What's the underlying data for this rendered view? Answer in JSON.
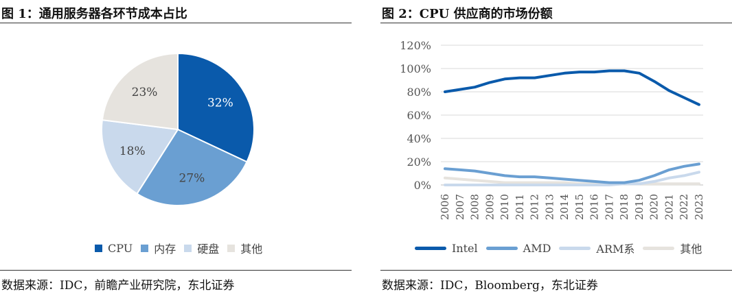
{
  "left": {
    "title": "图 1：通用服务器各环节成本占比",
    "source": "数据来源：IDC，前瞻产业研究院，东北证券",
    "chart_data": {
      "type": "pie",
      "categories": [
        "CPU",
        "内存",
        "硬盘",
        "其他"
      ],
      "values": [
        32,
        27,
        18,
        23
      ],
      "labels": [
        "32%",
        "27%",
        "18%",
        "23%"
      ],
      "colors": [
        "#0a5aab",
        "#6a9fd2",
        "#c9d9ec",
        "#e6e3de"
      ],
      "legend": "bottom"
    }
  },
  "right": {
    "title": "图 2：CPU 供应商的市场份额",
    "source": "数据来源：IDC，Bloomberg，东北证券",
    "chart_data": {
      "type": "line",
      "x": [
        "2006",
        "2007",
        "2008",
        "2009",
        "2010",
        "2011",
        "2012",
        "2013",
        "2014",
        "2015",
        "2016",
        "2017",
        "2018",
        "2019",
        "2020",
        "2021",
        "2022",
        "2023"
      ],
      "ylim": [
        0,
        120
      ],
      "yticks": [
        "0%",
        "20%",
        "40%",
        "60%",
        "80%",
        "100%",
        "120%"
      ],
      "series": [
        {
          "name": "Intel",
          "color": "#0a5aab",
          "values": [
            80,
            82,
            84,
            88,
            91,
            92,
            92,
            94,
            96,
            97,
            97,
            98,
            98,
            96,
            89,
            81,
            75,
            69
          ]
        },
        {
          "name": "AMD",
          "color": "#6a9fd2",
          "values": [
            14,
            13,
            12,
            10,
            8,
            7,
            7,
            6,
            5,
            4,
            3,
            2,
            2,
            4,
            8,
            13,
            16,
            18
          ]
        },
        {
          "name": "ARM系",
          "color": "#c9d9ec",
          "values": [
            0,
            0,
            0,
            0,
            0,
            0,
            0,
            0,
            0,
            0,
            0,
            0,
            1,
            1,
            3,
            6,
            8,
            11
          ]
        },
        {
          "name": "其他",
          "color": "#e6e3de",
          "values": [
            6,
            5,
            4,
            3,
            2,
            2,
            2,
            2,
            2,
            1,
            1,
            1,
            1,
            1,
            1,
            1,
            1,
            1
          ]
        }
      ],
      "grid": "horizontal",
      "legend": "bottom"
    }
  }
}
